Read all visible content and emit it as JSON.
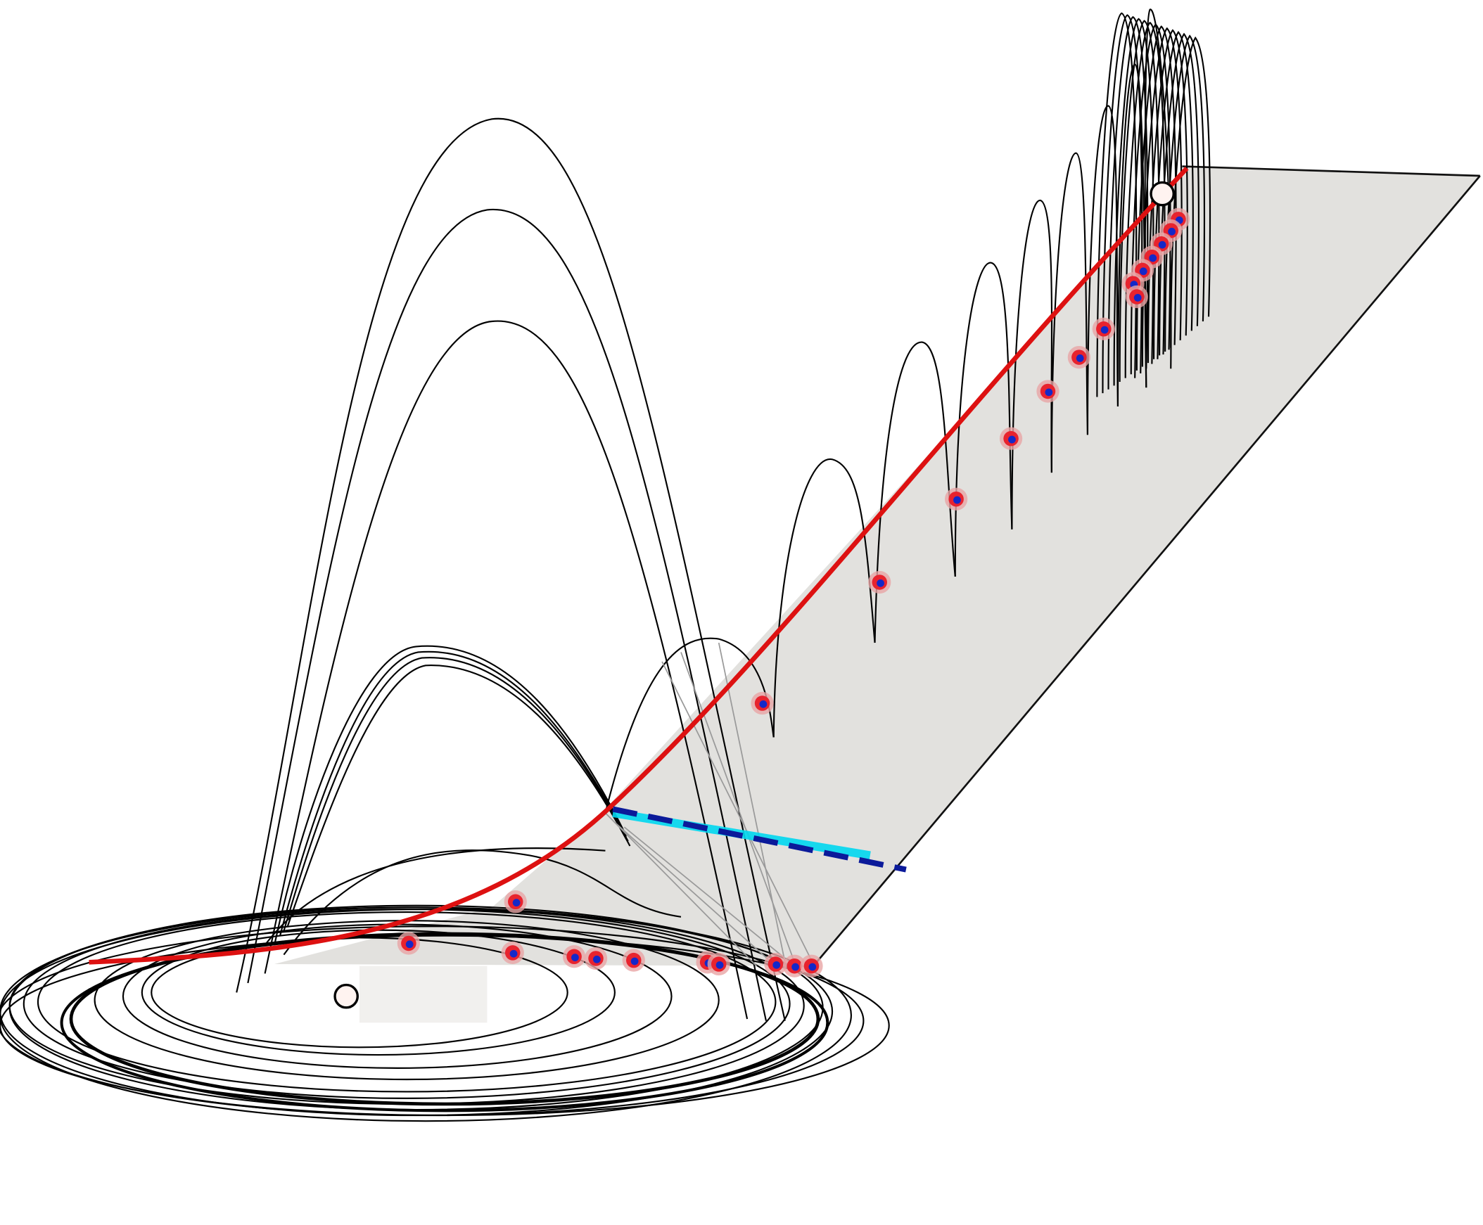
{
  "figure": {
    "colors": {
      "background": "#ffffff",
      "plane_fill": "#e2e1de",
      "plane_edge": "#111111",
      "trajectory": "#000000",
      "critical_curve": "#dd1111",
      "section_line": "#0b1a9a",
      "section_highlight": "#00d8f0",
      "marker_outer": "#e8232e",
      "marker_halo": "#e9a5a5",
      "marker_inner": "#1428c8",
      "equilibrium_fill": "#fff3f0",
      "equilibrium_stroke": "#000000",
      "projection_lines": "#9a9a9a"
    },
    "legend": "none",
    "axes": "none",
    "grid": false
  }
}
